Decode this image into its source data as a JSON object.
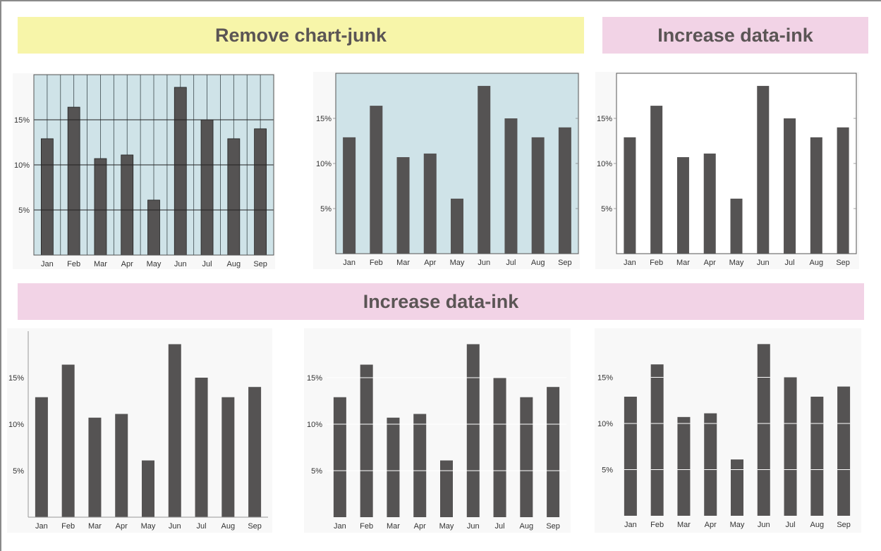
{
  "banners": {
    "remove_chart_junk": "Remove chart-junk",
    "increase_data_ink_top": "Increase data-ink",
    "increase_data_ink_bottom": "Increase data-ink"
  },
  "colors": {
    "bar": "#555353",
    "panel_blue": "#cfe3e8",
    "panel_light": "#f8f8f8",
    "banner_yellow": "#f7f5a9",
    "banner_pink": "#f2d3e6"
  },
  "chart_data": [
    {
      "type": "bar",
      "style": "heavy-grid",
      "categories": [
        "Jan",
        "Feb",
        "Mar",
        "Apr",
        "May",
        "Jun",
        "Jul",
        "Aug",
        "Sep"
      ],
      "values": [
        12.9,
        16.4,
        10.7,
        11.1,
        6.1,
        18.6,
        15.0,
        12.9,
        14.0
      ],
      "yticks": [
        "5%",
        "10%",
        "15%"
      ],
      "ylim": [
        0,
        20
      ],
      "grid": true,
      "title": "",
      "xlabel": "",
      "ylabel": ""
    },
    {
      "type": "bar",
      "style": "shaded-background",
      "categories": [
        "Jan",
        "Feb",
        "Mar",
        "Apr",
        "May",
        "Jun",
        "Jul",
        "Aug",
        "Sep"
      ],
      "values": [
        12.9,
        16.4,
        10.7,
        11.1,
        6.1,
        18.6,
        15.0,
        12.9,
        14.0
      ],
      "yticks": [
        "5%",
        "10%",
        "15%"
      ],
      "ylim": [
        0,
        20
      ],
      "grid": false,
      "title": "",
      "xlabel": "",
      "ylabel": ""
    },
    {
      "type": "bar",
      "style": "boxed",
      "categories": [
        "Jan",
        "Feb",
        "Mar",
        "Apr",
        "May",
        "Jun",
        "Jul",
        "Aug",
        "Sep"
      ],
      "values": [
        12.9,
        16.4,
        10.7,
        11.1,
        6.1,
        18.6,
        15.0,
        12.9,
        14.0
      ],
      "yticks": [
        "5%",
        "10%",
        "15%"
      ],
      "ylim": [
        0,
        20
      ],
      "grid": false,
      "title": "",
      "xlabel": "",
      "ylabel": ""
    },
    {
      "type": "bar",
      "style": "open-axes",
      "categories": [
        "Jan",
        "Feb",
        "Mar",
        "Apr",
        "May",
        "Jun",
        "Jul",
        "Aug",
        "Sep"
      ],
      "values": [
        12.9,
        16.4,
        10.7,
        11.1,
        6.1,
        18.6,
        15.0,
        12.9,
        14.0
      ],
      "yticks": [
        "5%",
        "10%",
        "15%"
      ],
      "ylim": [
        0,
        20
      ],
      "grid": false,
      "title": "",
      "xlabel": "",
      "ylabel": ""
    },
    {
      "type": "bar",
      "style": "white-grid-lines",
      "categories": [
        "Jan",
        "Feb",
        "Mar",
        "Apr",
        "May",
        "Jun",
        "Jul",
        "Aug",
        "Sep"
      ],
      "values": [
        12.9,
        16.4,
        10.7,
        11.1,
        6.1,
        18.6,
        15.0,
        12.9,
        14.0
      ],
      "yticks": [
        "5%",
        "10%",
        "15%"
      ],
      "ylim": [
        0,
        20
      ],
      "grid": true,
      "title": "",
      "xlabel": "",
      "ylabel": ""
    },
    {
      "type": "bar",
      "style": "minimal-white-grid",
      "categories": [
        "Jan",
        "Feb",
        "Mar",
        "Apr",
        "May",
        "Jun",
        "Jul",
        "Aug",
        "Sep"
      ],
      "values": [
        12.9,
        16.4,
        10.7,
        11.1,
        6.1,
        18.6,
        15.0,
        12.9,
        14.0
      ],
      "yticks": [
        "5%",
        "10%",
        "15%"
      ],
      "ylim": [
        0,
        20
      ],
      "grid": true,
      "title": "",
      "xlabel": "",
      "ylabel": ""
    }
  ]
}
